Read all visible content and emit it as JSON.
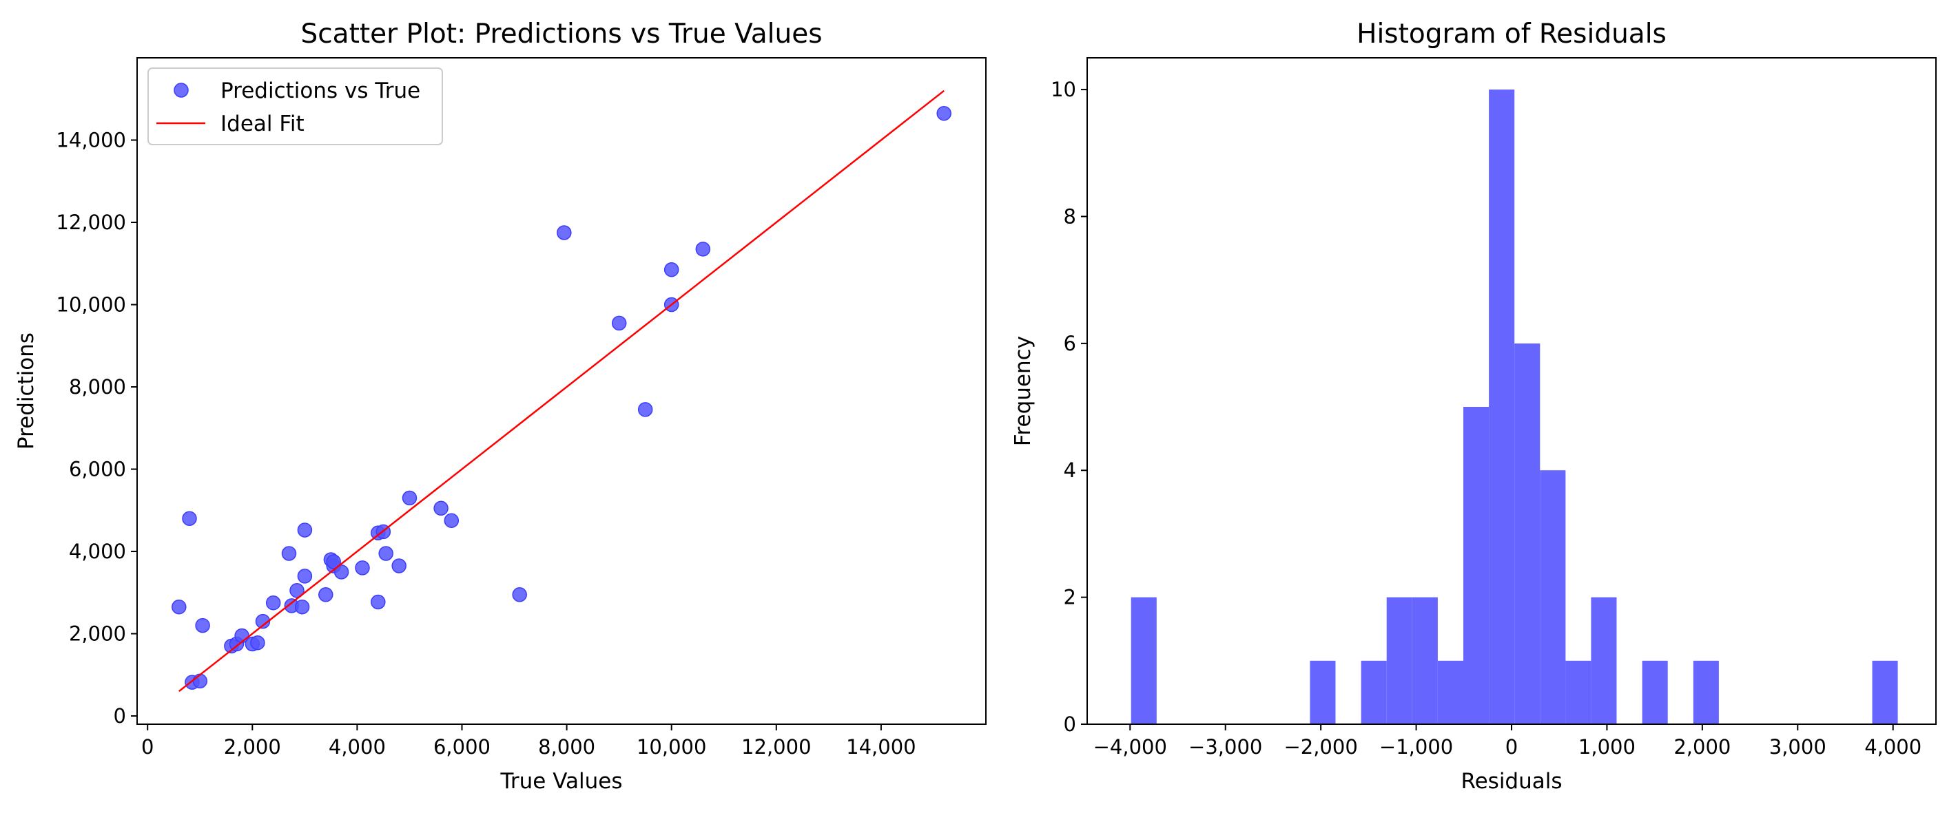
{
  "chart_data": [
    {
      "type": "scatter",
      "title": "Scatter Plot: Predictions vs True Values",
      "xlabel": "True Values",
      "ylabel": "Predictions",
      "xlim": [
        -200,
        16000
      ],
      "ylim": [
        -200,
        16000
      ],
      "xticks": [
        0,
        2000,
        4000,
        6000,
        8000,
        10000,
        12000,
        14000
      ],
      "xtick_labels": [
        "0",
        "2,000",
        "4,000",
        "6,000",
        "8,000",
        "10,000",
        "12,000",
        "14,000"
      ],
      "yticks": [
        0,
        2000,
        4000,
        6000,
        8000,
        10000,
        12000,
        14000
      ],
      "ytick_labels": [
        "0",
        "2,000",
        "4,000",
        "6,000",
        "8,000",
        "10,000",
        "12,000",
        "14,000"
      ],
      "grid": false,
      "legend": {
        "placement": "top-left",
        "entries": [
          {
            "label": "Predictions vs True",
            "kind": "marker",
            "color": "#5555ff"
          },
          {
            "label": "Ideal Fit",
            "kind": "line",
            "color": "#ff0000"
          }
        ]
      },
      "series": [
        {
          "name": "Predictions vs True",
          "color": "#5555ff",
          "points": [
            [
              600,
              2650
            ],
            [
              800,
              4800
            ],
            [
              850,
              820
            ],
            [
              1000,
              850
            ],
            [
              1050,
              2200
            ],
            [
              1600,
              1700
            ],
            [
              1700,
              1750
            ],
            [
              1800,
              1950
            ],
            [
              2000,
              1750
            ],
            [
              2100,
              1780
            ],
            [
              2200,
              2300
            ],
            [
              2400,
              2750
            ],
            [
              2700,
              3950
            ],
            [
              2750,
              2680
            ],
            [
              2850,
              3050
            ],
            [
              2950,
              2650
            ],
            [
              3000,
              3400
            ],
            [
              3000,
              4520
            ],
            [
              3400,
              2950
            ],
            [
              3500,
              3800
            ],
            [
              3550,
              3650
            ],
            [
              3550,
              3750
            ],
            [
              3700,
              3500
            ],
            [
              4100,
              3600
            ],
            [
              4400,
              2770
            ],
            [
              4400,
              4450
            ],
            [
              4500,
              4480
            ],
            [
              4550,
              3950
            ],
            [
              4800,
              3650
            ],
            [
              5000,
              5300
            ],
            [
              5600,
              5050
            ],
            [
              5800,
              4750
            ],
            [
              7100,
              2950
            ],
            [
              7950,
              11750
            ],
            [
              9000,
              9550
            ],
            [
              9500,
              7450
            ],
            [
              10000,
              10000
            ],
            [
              10000,
              10850
            ],
            [
              10600,
              11350
            ],
            [
              15200,
              14650
            ]
          ]
        },
        {
          "name": "Ideal Fit",
          "color": "#ff0000",
          "line": [
            [
              600,
              600
            ],
            [
              15200,
              15200
            ]
          ]
        }
      ]
    },
    {
      "type": "bar",
      "title": "Histogram of Residuals",
      "xlabel": "Residuals",
      "ylabel": "Frequency",
      "xlim": [
        -4450,
        4450
      ],
      "ylim": [
        0,
        10.5
      ],
      "xticks": [
        -4000,
        -3000,
        -2000,
        -1000,
        0,
        1000,
        2000,
        3000,
        4000
      ],
      "xtick_labels": [
        "−4,000",
        "−3,000",
        "−2,000",
        "−1,000",
        "0",
        "1,000",
        "2,000",
        "3,000",
        "4,000"
      ],
      "yticks": [
        0,
        2,
        4,
        6,
        8,
        10
      ],
      "ytick_labels": [
        "0",
        "2",
        "4",
        "6",
        "8",
        "10"
      ],
      "grid": false,
      "color": "#6666ff",
      "bin_edges": [
        -3990,
        -3722,
        -3454,
        -3186,
        -2918,
        -2650,
        -2382,
        -2114,
        -1846,
        -1578,
        -1310,
        -1042,
        -774,
        -506,
        -238,
        30,
        298,
        566,
        834,
        1102,
        1370,
        1638,
        1906,
        2174,
        2442,
        2710,
        2978,
        3246,
        3514,
        3782,
        4050
      ],
      "counts": [
        2,
        0,
        0,
        0,
        0,
        0,
        0,
        1,
        0,
        1,
        2,
        2,
        1,
        5,
        10,
        6,
        4,
        1,
        2,
        0,
        1,
        0,
        1,
        0,
        0,
        0,
        0,
        0,
        0,
        1
      ]
    }
  ]
}
